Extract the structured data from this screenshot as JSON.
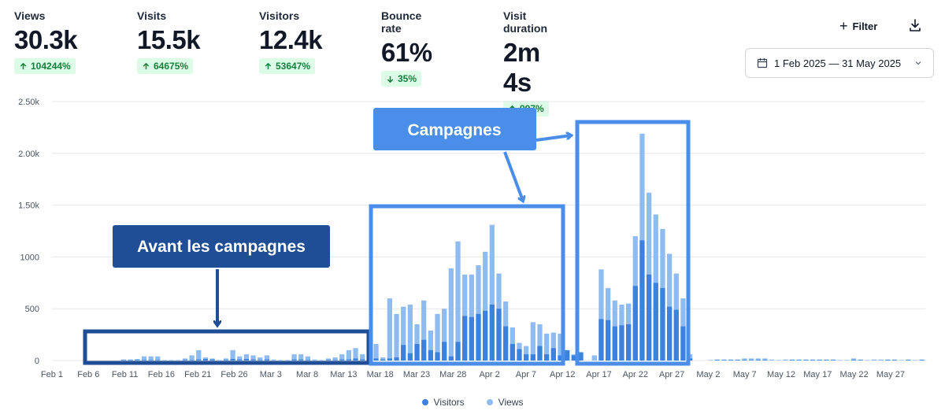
{
  "stats": [
    {
      "label": "Views",
      "value": "30.3k",
      "change": "104244%",
      "direction": "up"
    },
    {
      "label": "Visits",
      "value": "15.5k",
      "change": "64675%",
      "direction": "up"
    },
    {
      "label": "Visitors",
      "value": "12.4k",
      "change": "53647%",
      "direction": "up"
    },
    {
      "label": "Bounce rate",
      "value": "61%",
      "change": "35%",
      "direction": "down"
    },
    {
      "label": "Visit duration",
      "value": "2m 4s",
      "change": "997%",
      "direction": "up"
    }
  ],
  "toolbar": {
    "filter_label": "Filter",
    "date_range": "1 Feb 2025 — 31 May 2025"
  },
  "colors": {
    "visitors": "#3b82e0",
    "views": "#8fbcf0",
    "annotation_dark": "#1f4e96",
    "annotation_light": "#4a8eea",
    "badge_bg": "#dcfce7",
    "badge_text": "#15803d"
  },
  "annotations": {
    "before_label": "Avant les campagnes",
    "campaign_label": "Campagnes"
  },
  "chart_data": {
    "type": "bar",
    "y_ticks": [
      "0",
      "500",
      "1000",
      "1.50k",
      "2.00k",
      "2.50k"
    ],
    "ylim": [
      0,
      2500
    ],
    "x_ticks": [
      "Feb 1",
      "Feb 6",
      "Feb 11",
      "Feb 16",
      "Feb 21",
      "Feb 26",
      "Mar 3",
      "Mar 8",
      "Mar 13",
      "Mar 18",
      "Mar 23",
      "Mar 28",
      "Apr 2",
      "Apr 7",
      "Apr 12",
      "Apr 17",
      "Apr 22",
      "Apr 27",
      "May 2",
      "May 7",
      "May 12",
      "May 17",
      "May 22",
      "May 27"
    ],
    "grid": true,
    "legend_position": "bottom-center",
    "series": [
      {
        "name": "Visitors",
        "values": [
          0,
          0,
          0,
          0,
          0,
          0,
          0,
          0,
          0,
          0,
          5,
          5,
          5,
          5,
          5,
          5,
          0,
          0,
          0,
          5,
          5,
          10,
          15,
          10,
          0,
          5,
          15,
          10,
          15,
          10,
          5,
          10,
          0,
          0,
          0,
          10,
          10,
          5,
          0,
          0,
          5,
          5,
          10,
          10,
          20,
          10,
          10,
          20,
          10,
          20,
          30,
          150,
          70,
          160,
          200,
          100,
          80,
          180,
          40,
          180,
          430,
          420,
          450,
          480,
          540,
          500,
          330,
          160,
          110,
          60,
          60,
          140,
          60,
          120,
          50,
          100,
          50,
          80,
          0,
          0,
          400,
          390,
          330,
          340,
          350,
          720,
          1160,
          830,
          750,
          700,
          520,
          490,
          330,
          20,
          0,
          0,
          0,
          5,
          5,
          5,
          5,
          5,
          5,
          5,
          5,
          0,
          0,
          0,
          5,
          5,
          5,
          5,
          5,
          5,
          5,
          0,
          0,
          5,
          5,
          0,
          0,
          0,
          5,
          5,
          0,
          5,
          0,
          5
        ]
      },
      {
        "name": "Views",
        "values": [
          0,
          0,
          0,
          0,
          0,
          0,
          0,
          0,
          0,
          0,
          10,
          10,
          15,
          40,
          40,
          40,
          5,
          5,
          5,
          20,
          50,
          100,
          30,
          20,
          5,
          20,
          100,
          40,
          60,
          50,
          30,
          50,
          10,
          5,
          5,
          60,
          60,
          40,
          10,
          5,
          20,
          30,
          60,
          100,
          120,
          60,
          50,
          160,
          30,
          600,
          450,
          520,
          540,
          350,
          580,
          290,
          450,
          500,
          890,
          1150,
          830,
          830,
          920,
          1050,
          1310,
          840,
          570,
          320,
          170,
          140,
          370,
          350,
          260,
          270,
          260,
          100,
          60,
          80,
          0,
          50,
          880,
          700,
          580,
          540,
          550,
          1200,
          2190,
          1620,
          1410,
          1270,
          1030,
          840,
          600,
          60,
          0,
          0,
          5,
          10,
          10,
          10,
          10,
          20,
          20,
          20,
          20,
          10,
          5,
          10,
          10,
          10,
          10,
          10,
          10,
          10,
          10,
          5,
          5,
          20,
          10,
          5,
          10,
          10,
          10,
          10,
          5,
          10,
          5,
          10
        ]
      }
    ]
  }
}
